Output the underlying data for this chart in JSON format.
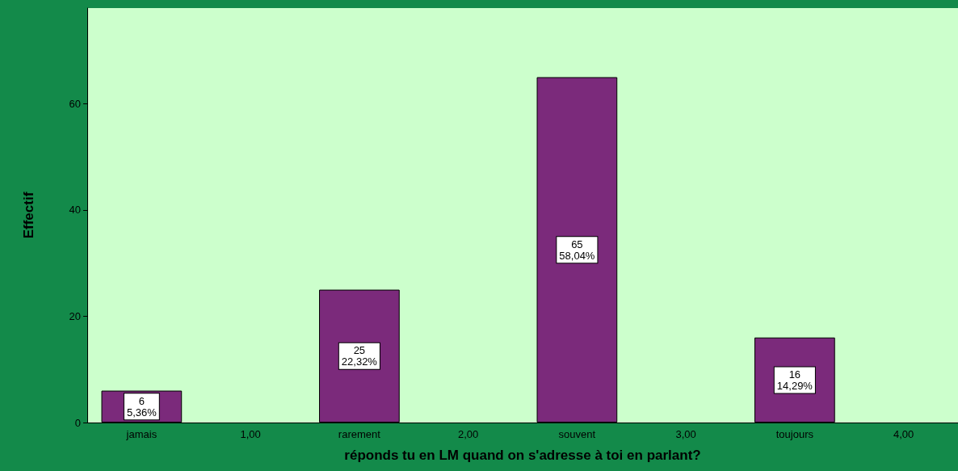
{
  "chart_data": {
    "type": "bar",
    "xlabel": "réponds tu en LM quand on s'adresse à toi en parlant?",
    "ylabel": "Effectif",
    "categories": [
      "jamais",
      "1,00",
      "rarement",
      "2,00",
      "souvent",
      "3,00",
      "toujours",
      "4,00"
    ],
    "values": [
      6,
      null,
      25,
      null,
      65,
      null,
      16,
      null
    ],
    "value_labels": [
      "6\n5,36%",
      null,
      "25\n22,32%",
      null,
      "65\n58,04%",
      null,
      "16\n14,29%",
      null
    ],
    "color": "#7b2a7b",
    "ylim": [
      0,
      78
    ],
    "yticks": [
      0,
      20,
      40,
      60
    ],
    "grid": false
  }
}
